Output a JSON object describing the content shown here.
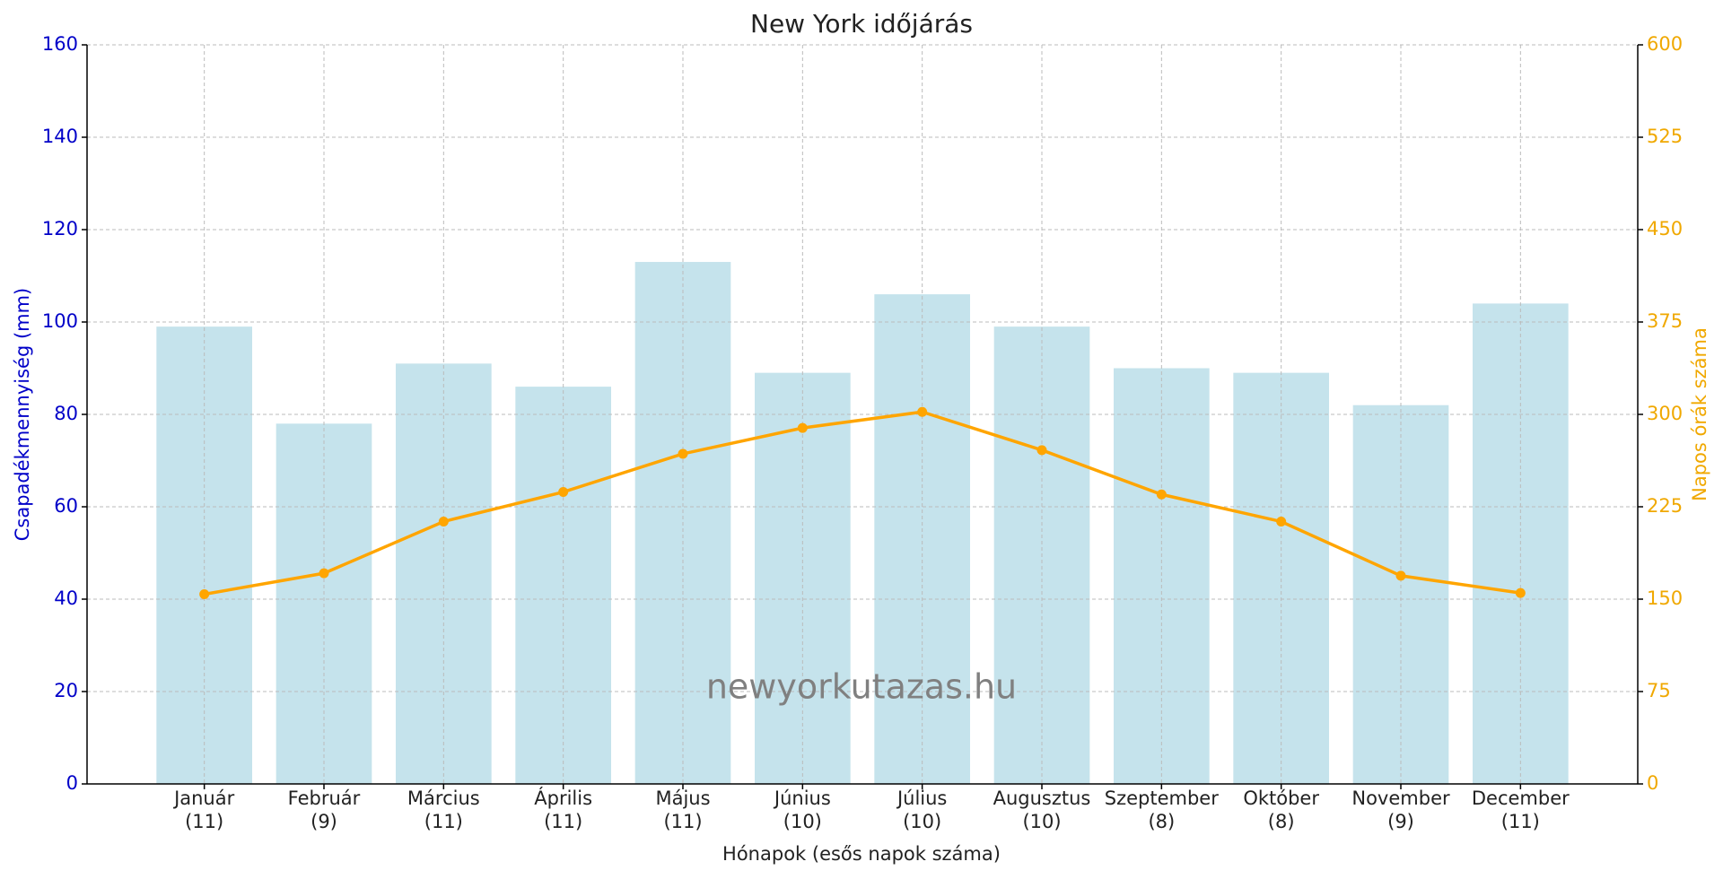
{
  "chart_data": {
    "type": "bar_line",
    "title": "New York időjárás",
    "x_label": "Hónapok (esős napok száma)",
    "y_label": "Csapadékmennyiség (mm)",
    "y2_label": "Napos órák száma",
    "annotation": "newyorkutazas.hu",
    "categories": [
      "Január",
      "Február",
      "Március",
      "Április",
      "Május",
      "Június",
      "Július",
      "Augusztus",
      "Szeptember",
      "Október",
      "November",
      "December"
    ],
    "category_sublabels": [
      "(11)",
      "(9)",
      "(11)",
      "(11)",
      "(11)",
      "(10)",
      "(10)",
      "(10)",
      "(8)",
      "(8)",
      "(9)",
      "(11)"
    ],
    "series": [
      {
        "type": "bar",
        "color": "#c5e3ec",
        "values": [
          99,
          78,
          91,
          86,
          113,
          89,
          106,
          99,
          90,
          89,
          82,
          104
        ]
      },
      {
        "type": "line",
        "axis": "y2",
        "color": "#ffa500",
        "values": [
          154,
          171,
          213,
          237,
          268,
          289,
          302,
          271,
          235,
          213,
          169,
          155
        ]
      }
    ],
    "ylim": [
      0,
      160
    ],
    "yticks": [
      0,
      20,
      40,
      60,
      80,
      100,
      120,
      140,
      160
    ],
    "y2lim": [
      0,
      600
    ],
    "y2ticks": [
      0,
      75,
      150,
      225,
      300,
      375,
      450,
      525,
      600
    ],
    "y_color": "#0000c8",
    "y2_color": "#f0a800",
    "grid": true
  }
}
